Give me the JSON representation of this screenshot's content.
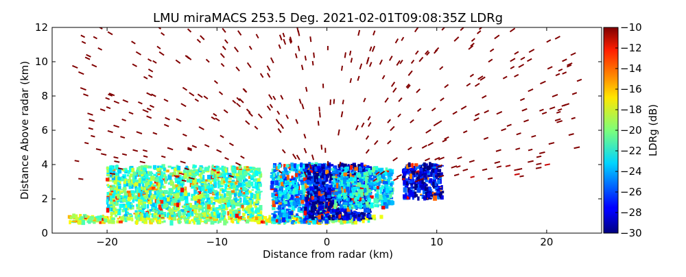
{
  "chart_data": {
    "type": "heatmap",
    "title": "LMU miraMACS 253.5 Deg. 2021-02-01T09:08:35Z  LDRg",
    "xlabel": "Distance from radar (km)",
    "ylabel": "Distance Above radar  (km)",
    "xlim": [
      -25,
      25
    ],
    "ylim": [
      0,
      12
    ],
    "xticks": [
      -20,
      -10,
      0,
      10,
      20
    ],
    "xtick_labels": [
      "−20",
      "−10",
      "0",
      "10",
      "20"
    ],
    "yticks": [
      0,
      2,
      4,
      6,
      8,
      10,
      12
    ],
    "ytick_labels": [
      "0",
      "2",
      "4",
      "6",
      "8",
      "10",
      "12"
    ],
    "colorbar": {
      "label": "LDRg (dB)",
      "colormap": "jet",
      "range": [
        -30,
        -10
      ],
      "ticks": [
        -30,
        -28,
        -26,
        -24,
        -22,
        -20,
        -18,
        -16,
        -14,
        -12,
        -10
      ],
      "tick_labels": [
        "−30",
        "−28",
        "−26",
        "−24",
        "−22",
        "−20",
        "−18",
        "−16",
        "−14",
        "−12",
        "−10"
      ]
    },
    "scan_azimuth_deg": 253.5,
    "time": "2021-02-01T09:08:35Z",
    "grid": false,
    "regions": [
      {
        "x": [
          -23.5,
          8
        ],
        "y": [
          0.6,
          1.0
        ],
        "ldr": -19
      },
      {
        "x": [
          -20,
          -6
        ],
        "y": [
          1.0,
          3.9
        ],
        "ldr": -21
      },
      {
        "x": [
          -5,
          0
        ],
        "y": [
          0.6,
          4.0
        ],
        "ldr": -24
      },
      {
        "x": [
          -2,
          4
        ],
        "y": [
          0.8,
          4.0
        ],
        "ldr": -28.5
      },
      {
        "x": [
          0.5,
          6
        ],
        "y": [
          1.5,
          3.8
        ],
        "ldr": -23
      },
      {
        "x": [
          7,
          10.5
        ],
        "y": [
          2.0,
          4.0
        ],
        "ldr": -28
      },
      {
        "x": [
          -23,
          23
        ],
        "y": [
          3.0,
          12.0
        ],
        "ldr": -10
      }
    ]
  }
}
